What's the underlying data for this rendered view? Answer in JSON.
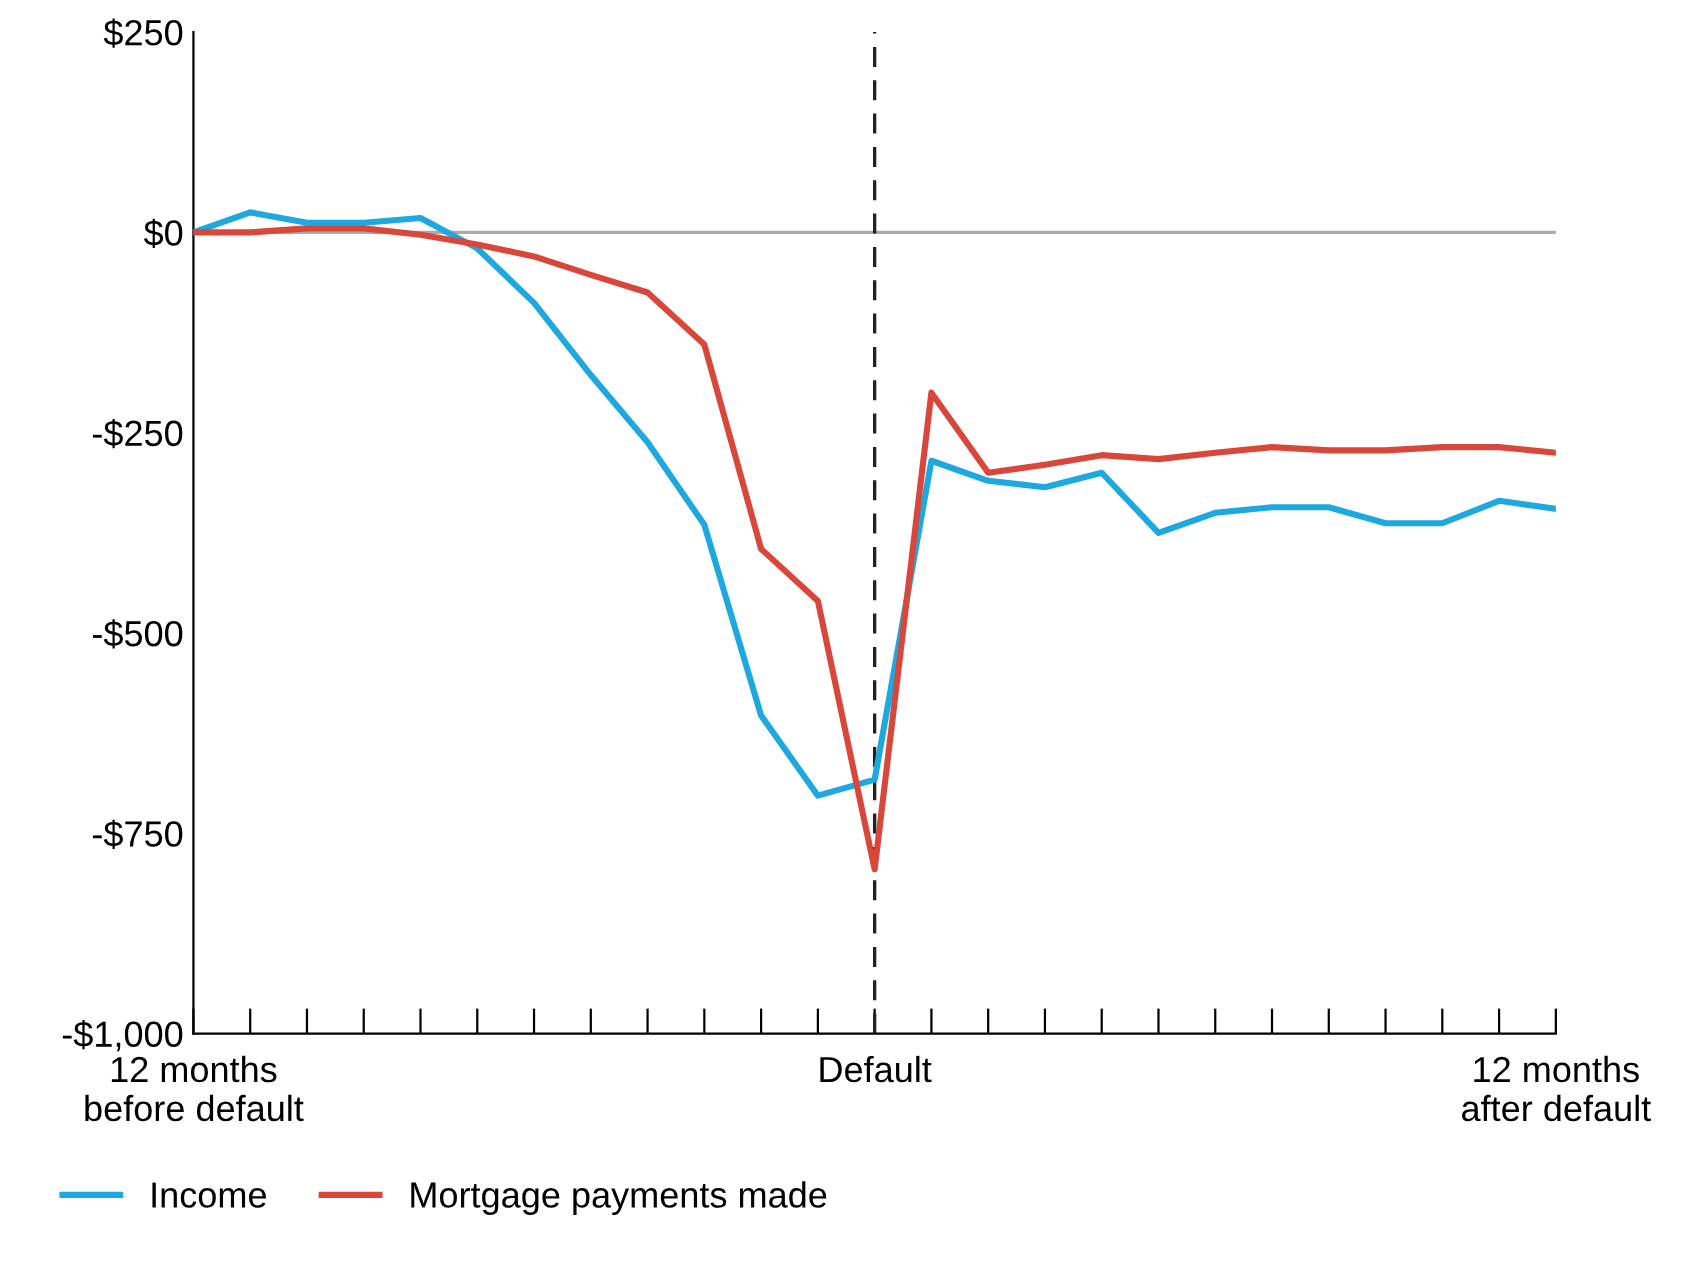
{
  "chart_data": {
    "type": "line",
    "x": [
      -12,
      -11,
      -10,
      -9,
      -8,
      -7,
      -6,
      -5,
      -4,
      -3,
      -2,
      -1,
      0,
      1,
      2,
      3,
      4,
      5,
      6,
      7,
      8,
      9,
      10,
      11,
      12
    ],
    "series": [
      {
        "name": "Income",
        "color": "#1ea8e0",
        "values": [
          0,
          25,
          12,
          12,
          18,
          -20,
          -88,
          -178,
          -262,
          -365,
          -603,
          -703,
          -683,
          -285,
          -310,
          -318,
          -300,
          -375,
          -350,
          -343,
          -343,
          -363,
          -363,
          -335,
          -345
        ]
      },
      {
        "name": "Mortgage payments made",
        "color": "#d9473a",
        "values": [
          0,
          0,
          5,
          5,
          -3,
          -15,
          -30,
          -53,
          -75,
          -140,
          -395,
          -460,
          -795,
          -200,
          -300,
          -290,
          -278,
          -283,
          -275,
          -268,
          -272,
          -272,
          -268,
          -268,
          -275
        ]
      }
    ],
    "xlim": [
      -12,
      12
    ],
    "xticks": [
      {
        "value": -12,
        "label": "12 months\nbefore default"
      },
      {
        "value": -11,
        "label": null
      },
      {
        "value": -10,
        "label": null
      },
      {
        "value": -9,
        "label": null
      },
      {
        "value": -8,
        "label": null
      },
      {
        "value": -7,
        "label": null
      },
      {
        "value": -6,
        "label": null
      },
      {
        "value": -5,
        "label": null
      },
      {
        "value": -4,
        "label": null
      },
      {
        "value": -3,
        "label": null
      },
      {
        "value": -2,
        "label": null
      },
      {
        "value": -1,
        "label": null
      },
      {
        "value": 0,
        "label": "Default"
      },
      {
        "value": 1,
        "label": null
      },
      {
        "value": 2,
        "label": null
      },
      {
        "value": 3,
        "label": null
      },
      {
        "value": 4,
        "label": null
      },
      {
        "value": 5,
        "label": null
      },
      {
        "value": 6,
        "label": null
      },
      {
        "value": 7,
        "label": null
      },
      {
        "value": 8,
        "label": null
      },
      {
        "value": 9,
        "label": null
      },
      {
        "value": 10,
        "label": null
      },
      {
        "value": 11,
        "label": null
      },
      {
        "value": 12,
        "label": "12 months\nafter default"
      }
    ],
    "ylim": [
      -1000,
      250
    ],
    "yticks": [
      {
        "value": 250,
        "label": "$250"
      },
      {
        "value": 0,
        "label": "$0"
      },
      {
        "value": -250,
        "label": "-$250"
      },
      {
        "value": -500,
        "label": "-$500"
      },
      {
        "value": -750,
        "label": "-$750"
      },
      {
        "value": -1000,
        "label": "-$1,000"
      }
    ],
    "ref_lines": [
      {
        "axis": "y",
        "value": 0,
        "label": null,
        "color": "#aaaaaa",
        "line_style": "solid"
      },
      {
        "axis": "x",
        "value": 0,
        "label": null,
        "color": "#222222",
        "line_style": "dashed"
      }
    ],
    "grid": false,
    "legend": "bottom left",
    "marker": "none",
    "line_style": "solid"
  }
}
